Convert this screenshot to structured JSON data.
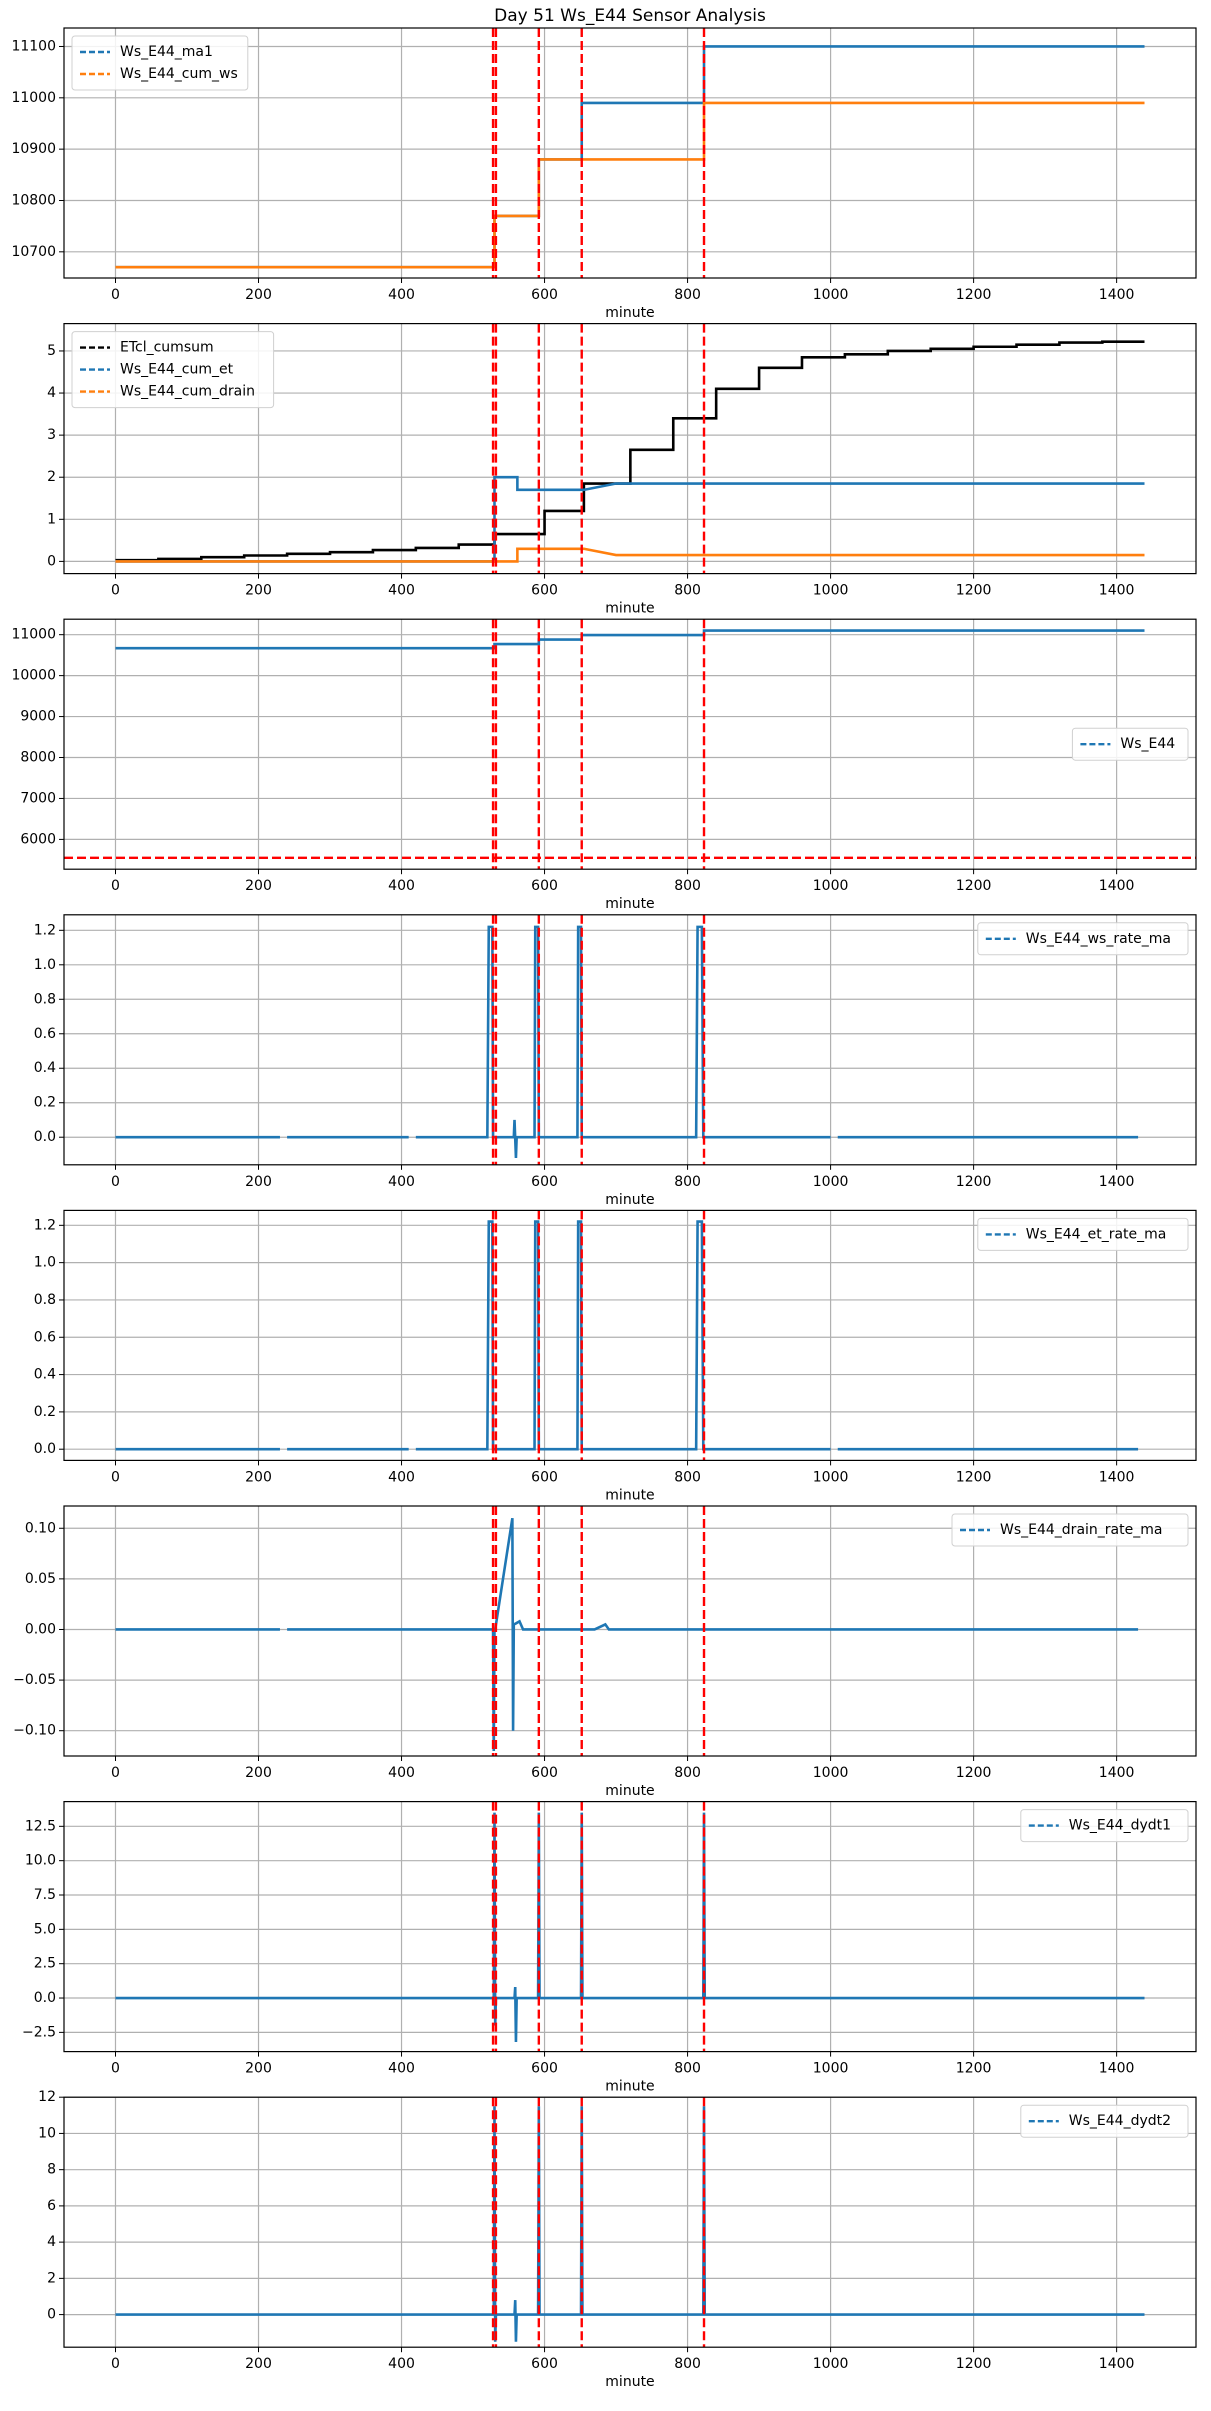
{
  "title": "Day 51 Ws_E44 Sensor Analysis",
  "chart_data": [
    {
      "type": "line",
      "xlabel": "minute",
      "xlim": [
        -72,
        1511
      ],
      "xticks": [
        0,
        200,
        400,
        600,
        800,
        1000,
        1200,
        1400
      ],
      "ylim": [
        10649,
        11136
      ],
      "yticks": [
        10700,
        10800,
        10900,
        11000,
        11100
      ],
      "grid": true,
      "legend": "upper left",
      "vlines": [
        528,
        532,
        592,
        652,
        823
      ],
      "vline_color": "#ff0000",
      "series": [
        {
          "name": "Ws_E44_ma1",
          "color": "#1f77b4",
          "x": [
            0,
            530,
            530,
            592,
            592,
            652,
            652,
            823,
            823,
            1439
          ],
          "values": [
            10670,
            10670,
            10770,
            10770,
            10880,
            10880,
            10990,
            10990,
            11100,
            11100
          ]
        },
        {
          "name": "Ws_E44_cum_ws",
          "color": "#ff7f0e",
          "x": [
            0,
            530,
            530,
            592,
            592,
            823,
            823,
            1439
          ],
          "values": [
            10670,
            10670,
            10770,
            10770,
            10880,
            10880,
            10990,
            10990
          ]
        }
      ]
    },
    {
      "type": "line",
      "xlabel": "minute",
      "xlim": [
        -72,
        1511
      ],
      "xticks": [
        0,
        200,
        400,
        600,
        800,
        1000,
        1200,
        1400
      ],
      "ylim": [
        -0.29,
        5.65
      ],
      "yticks": [
        0,
        1,
        2,
        3,
        4,
        5
      ],
      "grid": true,
      "legend": "upper left",
      "vlines": [
        528,
        532,
        592,
        652,
        823
      ],
      "vline_color": "#ff0000",
      "series": [
        {
          "name": "ETcl_cumsum",
          "color": "#000000",
          "x": [
            0,
            60,
            60,
            120,
            120,
            180,
            180,
            240,
            240,
            300,
            300,
            360,
            360,
            420,
            420,
            480,
            480,
            530,
            530,
            600,
            600,
            655,
            655,
            720,
            720,
            780,
            780,
            840,
            840,
            900,
            900,
            960,
            960,
            1020,
            1020,
            1080,
            1080,
            1140,
            1140,
            1200,
            1200,
            1260,
            1260,
            1320,
            1320,
            1380,
            1380,
            1439
          ],
          "values": [
            0.03,
            0.03,
            0.06,
            0.06,
            0.1,
            0.1,
            0.14,
            0.14,
            0.18,
            0.18,
            0.22,
            0.22,
            0.27,
            0.27,
            0.32,
            0.32,
            0.4,
            0.4,
            0.65,
            0.65,
            1.2,
            1.2,
            1.85,
            1.85,
            2.65,
            2.65,
            3.4,
            3.4,
            4.1,
            4.1,
            4.6,
            4.6,
            4.85,
            4.85,
            4.92,
            4.92,
            5.0,
            5.0,
            5.05,
            5.05,
            5.1,
            5.1,
            5.15,
            5.15,
            5.2,
            5.2,
            5.22,
            5.22
          ]
        },
        {
          "name": "Ws_E44_cum_et",
          "color": "#1f77b4",
          "x": [
            0,
            530,
            530,
            562,
            562,
            655,
            700,
            1439
          ],
          "values": [
            0,
            0,
            2.0,
            2.0,
            1.7,
            1.7,
            1.85,
            1.85
          ]
        },
        {
          "name": "Ws_E44_cum_drain",
          "color": "#ff7f0e",
          "x": [
            0,
            562,
            562,
            655,
            700,
            1439
          ],
          "values": [
            0,
            0,
            0.3,
            0.3,
            0.15,
            0.15
          ]
        }
      ]
    },
    {
      "type": "line",
      "xlabel": "minute",
      "xlim": [
        -72,
        1511
      ],
      "xticks": [
        0,
        200,
        400,
        600,
        800,
        1000,
        1200,
        1400
      ],
      "ylim": [
        5272,
        11378
      ],
      "yticks": [
        6000,
        7000,
        8000,
        9000,
        10000,
        11000
      ],
      "grid": true,
      "legend": "center right",
      "vlines": [
        528,
        532,
        592,
        652,
        823
      ],
      "hlines": [
        5550
      ],
      "vline_color": "#ff0000",
      "series": [
        {
          "name": "Ws_E44",
          "color": "#1f77b4",
          "x": [
            0,
            530,
            530,
            592,
            592,
            652,
            652,
            823,
            823,
            1439
          ],
          "values": [
            10670,
            10670,
            10770,
            10770,
            10880,
            10880,
            10990,
            10990,
            11100,
            11100
          ]
        }
      ]
    },
    {
      "type": "line",
      "xlabel": "minute",
      "xlim": [
        -72,
        1511
      ],
      "xticks": [
        0,
        200,
        400,
        600,
        800,
        1000,
        1200,
        1400
      ],
      "ylim": [
        -0.16,
        1.29
      ],
      "yticks": [
        {
          "value": 0,
          "label": "0.0"
        },
        0.2,
        0.4,
        0.6,
        0.8,
        {
          "value": 1,
          "label": "1.0"
        },
        1.2
      ],
      "grid": true,
      "legend": "upper right",
      "vlines": [
        528,
        532,
        592,
        652,
        823
      ],
      "vline_color": "#ff0000",
      "series": [
        {
          "name": "Ws_E44_ws_rate_ma",
          "color": "#1f77b4",
          "x": [
            0,
            230,
            235,
            240,
            410,
            415,
            420,
            520,
            522,
            527,
            528,
            557,
            558,
            560,
            561,
            586,
            587,
            591,
            592,
            646,
            647,
            651,
            652,
            812,
            814,
            820,
            822,
            1000,
            1005,
            1010,
            1430
          ],
          "values": [
            0,
            0,
            null,
            0,
            0,
            null,
            0,
            0,
            1.22,
            1.22,
            0,
            0,
            0.1,
            -0.12,
            0,
            0,
            1.22,
            1.22,
            0,
            0,
            1.22,
            1.22,
            0,
            0,
            1.22,
            1.22,
            0,
            0,
            null,
            0,
            0
          ]
        }
      ]
    },
    {
      "type": "line",
      "xlabel": "minute",
      "xlim": [
        -72,
        1511
      ],
      "xticks": [
        0,
        200,
        400,
        600,
        800,
        1000,
        1200,
        1400
      ],
      "ylim": [
        -0.06,
        1.28
      ],
      "yticks": [
        {
          "value": 0,
          "label": "0.0"
        },
        0.2,
        0.4,
        0.6,
        0.8,
        {
          "value": 1,
          "label": "1.0"
        },
        1.2
      ],
      "grid": true,
      "legend": "upper right",
      "vlines": [
        528,
        532,
        592,
        652,
        823
      ],
      "vline_color": "#ff0000",
      "series": [
        {
          "name": "Ws_E44_et_rate_ma",
          "color": "#1f77b4",
          "x": [
            0,
            230,
            235,
            240,
            410,
            415,
            420,
            520,
            522,
            527,
            528,
            586,
            587,
            591,
            592,
            646,
            647,
            651,
            652,
            812,
            814,
            820,
            822,
            1000,
            1005,
            1010,
            1430
          ],
          "values": [
            0,
            0,
            null,
            0,
            0,
            null,
            0,
            0,
            1.22,
            1.22,
            0,
            0,
            1.22,
            1.22,
            0,
            0,
            1.22,
            1.22,
            0,
            0,
            1.22,
            1.22,
            0,
            0,
            null,
            0,
            0
          ]
        }
      ]
    },
    {
      "type": "line",
      "xlabel": "minute",
      "xlim": [
        -72,
        1511
      ],
      "xticks": [
        0,
        200,
        400,
        600,
        800,
        1000,
        1200,
        1400
      ],
      "ylim": [
        -0.125,
        0.122
      ],
      "yticks": [
        {
          "value": -0.1,
          "label": "−0.10"
        },
        {
          "value": -0.05,
          "label": "−0.05"
        },
        {
          "value": 0,
          "label": "0.00"
        },
        0.05,
        {
          "value": 0.1,
          "label": "0.10"
        }
      ],
      "grid": true,
      "legend": "upper right",
      "vlines": [
        528,
        532,
        592,
        652,
        823
      ],
      "vline_color": "#ff0000",
      "series": [
        {
          "name": "Ws_E44_drain_rate_ma",
          "color": "#1f77b4",
          "x": [
            0,
            230,
            235,
            240,
            528,
            529,
            530,
            531,
            555,
            556,
            557,
            560,
            565,
            570,
            670,
            685,
            690,
            1430
          ],
          "values": [
            0,
            0,
            null,
            0,
            0,
            -0.12,
            0,
            0,
            0.11,
            -0.1,
            0.005,
            0.006,
            0.008,
            0,
            0,
            0.005,
            0,
            0
          ]
        }
      ]
    },
    {
      "type": "line",
      "xlabel": "minute",
      "xlim": [
        -72,
        1511
      ],
      "xticks": [
        0,
        200,
        400,
        600,
        800,
        1000,
        1200,
        1400
      ],
      "ylim": [
        -3.9,
        14.3
      ],
      "yticks": [
        {
          "value": -2.5,
          "label": "−2.5"
        },
        {
          "value": 0,
          "label": "0.0"
        },
        2.5,
        {
          "value": 5,
          "label": "5.0"
        },
        7.5,
        {
          "value": 10,
          "label": "10.0"
        },
        12.5
      ],
      "grid": true,
      "legend": "upper right",
      "vlines": [
        528,
        532,
        592,
        652,
        823
      ],
      "vline_color": "#ff0000",
      "series": [
        {
          "name": "Ws_E44_dydt1",
          "color": "#1f77b4",
          "x": [
            0,
            529,
            530,
            531,
            532,
            558,
            559,
            560,
            561,
            591,
            592,
            593,
            651,
            652,
            653,
            822,
            823,
            824,
            1439
          ],
          "values": [
            0,
            0,
            13.5,
            -2,
            0,
            0,
            0.8,
            -3.2,
            0,
            0,
            13.5,
            0,
            0,
            13.5,
            0,
            0,
            13.5,
            0,
            0
          ]
        }
      ]
    },
    {
      "type": "line",
      "xlabel": "minute",
      "xlim": [
        -72,
        1511
      ],
      "xticks": [
        0,
        200,
        400,
        600,
        800,
        1000,
        1200,
        1400
      ],
      "ylim": [
        -1.8,
        12
      ],
      "yticks": [
        0,
        2,
        4,
        6,
        8,
        10,
        12
      ],
      "grid": true,
      "legend": "upper right",
      "vlines": [
        528,
        532,
        592,
        652,
        823
      ],
      "vline_color": "#ff0000",
      "series": [
        {
          "name": "Ws_E44_dydt2",
          "color": "#1f77b4",
          "x": [
            0,
            529,
            530,
            531,
            532,
            558,
            559,
            560,
            561,
            591,
            592,
            593,
            651,
            652,
            653,
            822,
            823,
            824,
            1439
          ],
          "values": [
            0,
            0,
            11.5,
            -1.5,
            0,
            0,
            0.8,
            -1.5,
            0,
            0,
            11.5,
            0,
            0,
            11.5,
            0,
            0,
            11.5,
            0,
            0
          ]
        }
      ]
    }
  ]
}
